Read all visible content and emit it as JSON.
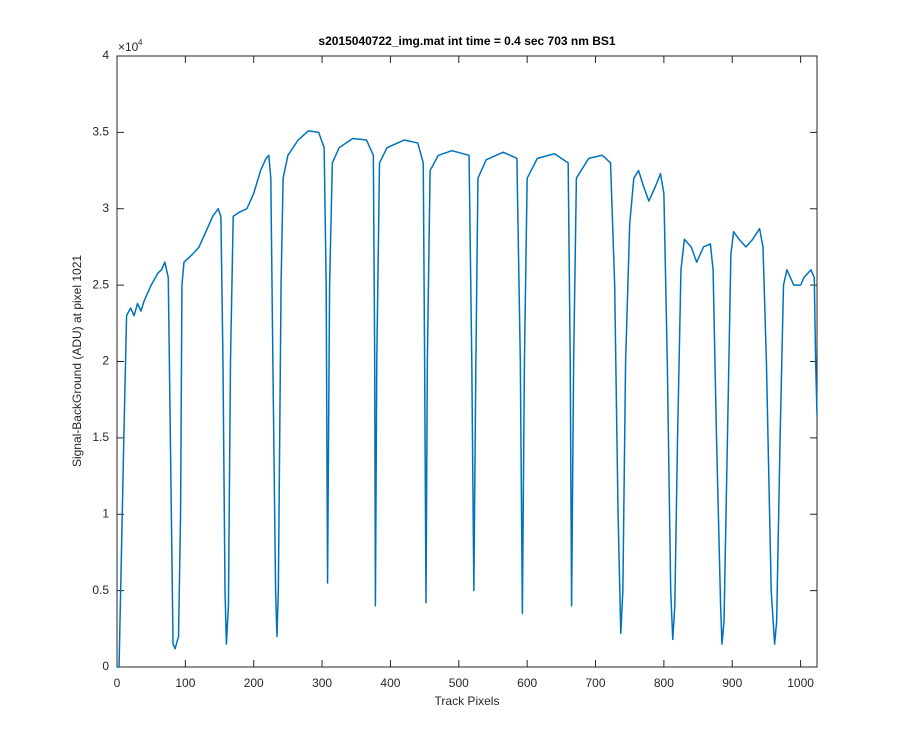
{
  "chart_data": {
    "type": "line",
    "title": "s2015040722_img.mat int time = 0.4 sec  703 nm BS1",
    "xlabel": "Track Pixels",
    "ylabel": "Signal-BackGround (ADU) at pixel 1021",
    "y_scale_label": {
      "base": "×10",
      "exponent": "4"
    },
    "xlim": [
      0,
      1024
    ],
    "xticks": [
      0,
      100,
      200,
      300,
      400,
      500,
      600,
      700,
      800,
      900,
      1000
    ],
    "ylim": [
      0,
      4
    ],
    "yticks": [
      0,
      0.5,
      1,
      1.5,
      2,
      2.5,
      3,
      3.5,
      4
    ],
    "series": [
      {
        "color": "#0072bd",
        "x": [
          0,
          3,
          10,
          14,
          20,
          25,
          30,
          35,
          40,
          50,
          60,
          65,
          70,
          75,
          82,
          85,
          90,
          93,
          95,
          98,
          110,
          120,
          130,
          140,
          148,
          152,
          155,
          158,
          160,
          163,
          166,
          170,
          180,
          190,
          200,
          210,
          218,
          222,
          225,
          228,
          232,
          234,
          236,
          240,
          243,
          250,
          265,
          280,
          295,
          303,
          306,
          308,
          311,
          315,
          325,
          345,
          365,
          375,
          377,
          378,
          380,
          384,
          395,
          420,
          440,
          448,
          450,
          452,
          454,
          458,
          470,
          490,
          515,
          519,
          522,
          525,
          528,
          540,
          565,
          585,
          590,
          593,
          596,
          600,
          615,
          640,
          660,
          663,
          665,
          668,
          672,
          690,
          710,
          722,
          728,
          733,
          737,
          740,
          744,
          750,
          756,
          763,
          770,
          778,
          788,
          795,
          800,
          805,
          810,
          813,
          816,
          820,
          825,
          830,
          840,
          848,
          858,
          868,
          872,
          877,
          883,
          885,
          888,
          893,
          898,
          902,
          910,
          920,
          930,
          940,
          945,
          950,
          957,
          962,
          965,
          970,
          975,
          980,
          990,
          1000,
          1005,
          1015,
          1020,
          1022,
          1024
        ],
        "values": [
          0,
          0,
          1.5,
          2.3,
          2.35,
          2.3,
          2.38,
          2.33,
          2.4,
          2.5,
          2.58,
          2.6,
          2.65,
          2.55,
          0.15,
          0.12,
          0.2,
          1.0,
          2.5,
          2.65,
          2.7,
          2.75,
          2.85,
          2.95,
          3.0,
          2.95,
          2.0,
          0.5,
          0.15,
          0.4,
          2.0,
          2.95,
          2.98,
          3.0,
          3.1,
          3.25,
          3.33,
          3.35,
          3.2,
          2.0,
          0.5,
          0.2,
          0.5,
          2.5,
          3.2,
          3.35,
          3.45,
          3.51,
          3.5,
          3.4,
          2.5,
          0.55,
          2.5,
          3.3,
          3.4,
          3.46,
          3.45,
          3.35,
          2.0,
          0.4,
          2.0,
          3.3,
          3.4,
          3.45,
          3.43,
          3.3,
          2.0,
          0.42,
          2.0,
          3.25,
          3.35,
          3.38,
          3.35,
          2.0,
          0.5,
          2.0,
          3.2,
          3.32,
          3.37,
          3.33,
          2.0,
          0.35,
          2.0,
          3.2,
          3.33,
          3.36,
          3.3,
          2.0,
          0.4,
          2.0,
          3.2,
          3.33,
          3.35,
          3.3,
          2.5,
          1.0,
          0.22,
          0.5,
          2.0,
          2.9,
          3.2,
          3.25,
          3.15,
          3.05,
          3.15,
          3.23,
          3.1,
          2.0,
          0.5,
          0.18,
          0.4,
          1.5,
          2.6,
          2.8,
          2.75,
          2.65,
          2.75,
          2.77,
          2.6,
          1.5,
          0.4,
          0.15,
          0.3,
          1.5,
          2.7,
          2.85,
          2.8,
          2.75,
          2.8,
          2.87,
          2.75,
          2.0,
          0.5,
          0.15,
          0.3,
          1.5,
          2.5,
          2.6,
          2.5,
          2.5,
          2.55,
          2.6,
          2.55,
          2.0,
          1.65
        ]
      }
    ]
  }
}
